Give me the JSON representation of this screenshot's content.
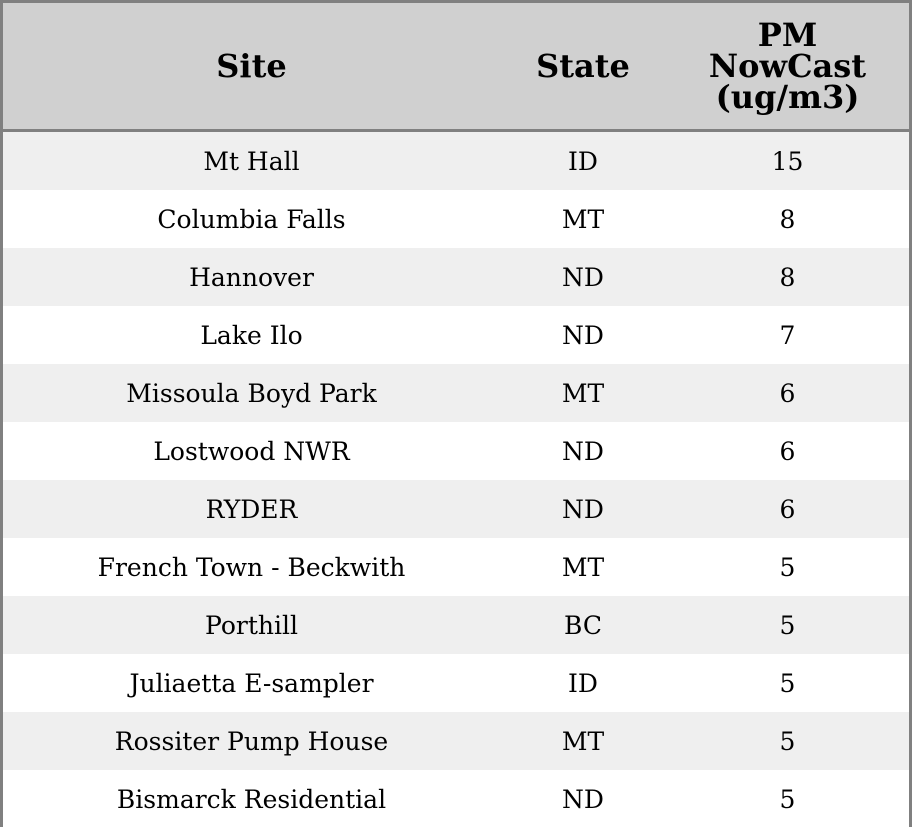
{
  "chart_data": {
    "type": "table",
    "columns": [
      "Site",
      "State",
      "PM NowCast (ug/m3)"
    ],
    "header_lines": [
      [
        "Site"
      ],
      [
        "State"
      ],
      [
        "PM",
        "NowCast",
        "(ug/m3)"
      ]
    ],
    "rows": [
      [
        "Mt Hall",
        "ID",
        "15"
      ],
      [
        "Columbia Falls",
        "MT",
        "8"
      ],
      [
        "Hannover",
        "ND",
        "8"
      ],
      [
        "Lake Ilo",
        "ND",
        "7"
      ],
      [
        "Missoula Boyd Park",
        "MT",
        "6"
      ],
      [
        "Lostwood NWR",
        "ND",
        "6"
      ],
      [
        "RYDER",
        "ND",
        "6"
      ],
      [
        "French Town - Beckwith",
        "MT",
        "5"
      ],
      [
        "Porthill",
        "BC",
        "5"
      ],
      [
        "Juliaetta E-sampler",
        "ID",
        "5"
      ],
      [
        "Rossiter Pump House",
        "MT",
        "5"
      ],
      [
        "Bismarck Residential",
        "ND",
        "5"
      ]
    ],
    "colors": {
      "header_bg": "#d0d0d0",
      "row_alt_bg": "#efefef",
      "border": "#808080"
    }
  }
}
